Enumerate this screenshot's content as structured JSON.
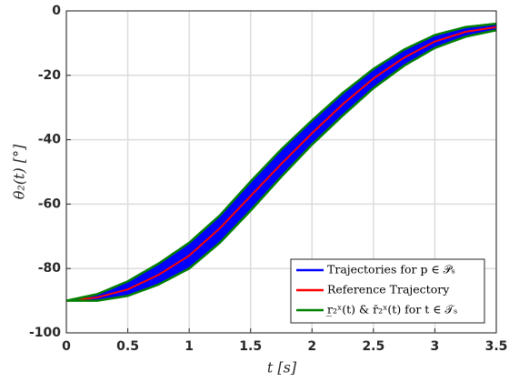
{
  "chart_data": {
    "type": "line",
    "xlabel": "t [s]",
    "ylabel": "θ₂(t) [°]",
    "x": [
      0,
      0.25,
      0.5,
      0.75,
      1,
      1.25,
      1.5,
      1.75,
      2,
      2.25,
      2.5,
      2.75,
      3,
      3.25,
      3.5
    ],
    "series": [
      {
        "name": "Trajectories for p ∈ 𝒫ₛ",
        "color": "#0000ff",
        "upper": [
          -90,
          -88,
          -84,
          -78.5,
          -72,
          -63.5,
          -53,
          -43,
          -34,
          -25.5,
          -18,
          -12,
          -7.5,
          -5,
          -4
        ],
        "lower": [
          -90,
          -90,
          -88.5,
          -85,
          -80,
          -72,
          -62,
          -51.5,
          -41.5,
          -32.5,
          -24,
          -17,
          -11.5,
          -8,
          -6
        ]
      },
      {
        "name": "Reference Trajectory",
        "color": "#ff0000",
        "values": [
          -90,
          -89,
          -86.5,
          -82,
          -76,
          -67.5,
          -57.5,
          -47.5,
          -38,
          -29,
          -21,
          -14.5,
          -9.5,
          -6.5,
          -5
        ]
      },
      {
        "name": "r̲₂ˣ(t) & r̄₂ˣ(t) for t ∈ 𝒯ₛ",
        "color": "#008000",
        "upper": [
          -90,
          -88,
          -84,
          -78.5,
          -72,
          -63.5,
          -53,
          -43,
          -34,
          -25.5,
          -18,
          -12,
          -7.5,
          -5,
          -4
        ],
        "lower": [
          -90,
          -90,
          -88.5,
          -85,
          -80,
          -72,
          -62,
          -51.5,
          -41.5,
          -32.5,
          -24,
          -17,
          -11.5,
          -8,
          -6
        ]
      }
    ],
    "xlim": [
      0,
      3.5
    ],
    "xticks": [
      0,
      0.5,
      1,
      1.5,
      2,
      2.5,
      3,
      3.5
    ],
    "ylim": [
      -100,
      0
    ],
    "yticks": [
      -100,
      -80,
      -60,
      -40,
      -20,
      0
    ],
    "grid": true,
    "legend": "lower right"
  }
}
